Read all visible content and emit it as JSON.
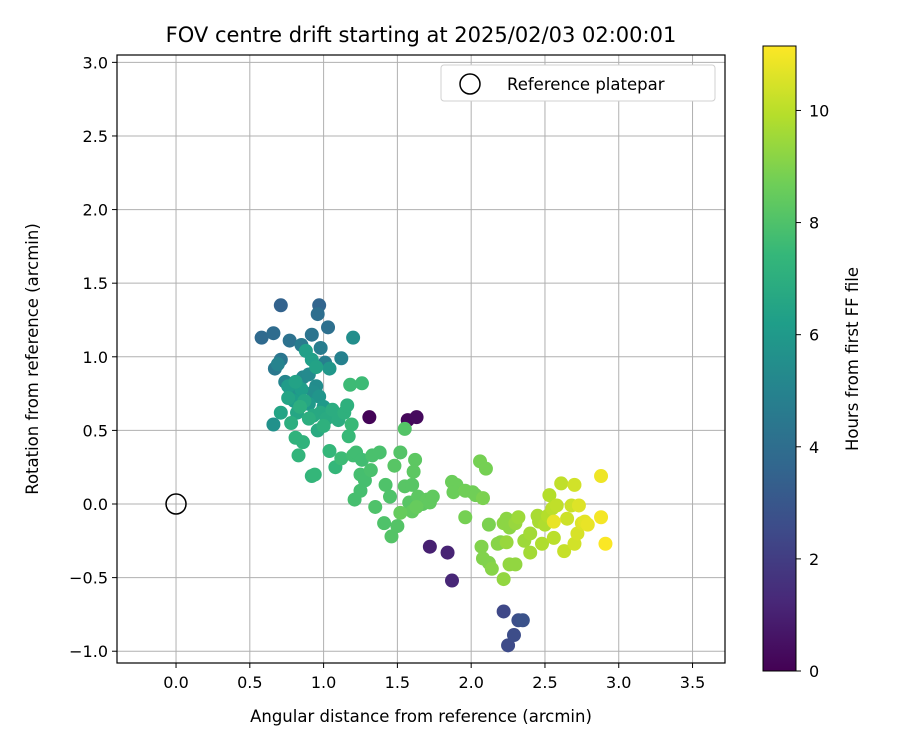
{
  "chart_data": {
    "type": "scatter",
    "title": "FOV centre drift starting at 2025/02/03 02:00:01",
    "xlabel": "Angular distance from reference (arcmin)",
    "ylabel": "Rotation from reference (arcmin)",
    "xlim": [
      -0.4,
      3.72
    ],
    "ylim": [
      -1.08,
      3.05
    ],
    "xticks": [
      "0.0",
      "0.5",
      "1.0",
      "1.5",
      "2.0",
      "2.5",
      "3.0",
      "3.5"
    ],
    "yticks": [
      "−1.0",
      "−0.5",
      "0.0",
      "0.5",
      "1.0",
      "1.5",
      "2.0",
      "2.5",
      "3.0"
    ],
    "grid": true,
    "legend": {
      "label": "Reference platepar",
      "position": "top-right"
    },
    "reference_point": {
      "x": 0.0,
      "y": 0.0
    },
    "colorbar": {
      "label": "Hours from first FF file",
      "colormap": "viridis",
      "range": [
        0,
        11.15
      ],
      "ticks": [
        "0",
        "2",
        "4",
        "6",
        "8",
        "10"
      ]
    },
    "points": [
      {
        "x": 1.31,
        "y": 0.59,
        "t": 0.1
      },
      {
        "x": 1.57,
        "y": 0.57,
        "t": 0.2
      },
      {
        "x": 1.63,
        "y": 0.59,
        "t": 0.3
      },
      {
        "x": 1.72,
        "y": -0.29,
        "t": 1.0
      },
      {
        "x": 1.84,
        "y": -0.33,
        "t": 1.1
      },
      {
        "x": 1.87,
        "y": -0.52,
        "t": 1.2
      },
      {
        "x": 2.22,
        "y": -0.73,
        "t": 2.4
      },
      {
        "x": 2.25,
        "y": -0.96,
        "t": 2.5
      },
      {
        "x": 2.29,
        "y": -0.89,
        "t": 2.6
      },
      {
        "x": 2.32,
        "y": -0.79,
        "t": 2.7
      },
      {
        "x": 2.35,
        "y": -0.79,
        "t": 2.8
      },
      {
        "x": 0.71,
        "y": 1.35,
        "t": 3.5
      },
      {
        "x": 0.97,
        "y": 1.35,
        "t": 3.6
      },
      {
        "x": 0.58,
        "y": 1.13,
        "t": 3.8
      },
      {
        "x": 0.66,
        "y": 1.16,
        "t": 3.9
      },
      {
        "x": 0.96,
        "y": 1.29,
        "t": 4.0
      },
      {
        "x": 1.03,
        "y": 1.2,
        "t": 4.1
      },
      {
        "x": 0.77,
        "y": 1.11,
        "t": 4.2
      },
      {
        "x": 0.92,
        "y": 1.15,
        "t": 4.3
      },
      {
        "x": 0.71,
        "y": 0.98,
        "t": 4.4
      },
      {
        "x": 0.67,
        "y": 0.92,
        "t": 4.5
      },
      {
        "x": 0.85,
        "y": 1.08,
        "t": 4.6
      },
      {
        "x": 0.98,
        "y": 1.06,
        "t": 4.7
      },
      {
        "x": 1.01,
        "y": 0.96,
        "t": 4.8
      },
      {
        "x": 1.12,
        "y": 0.99,
        "t": 4.9
      },
      {
        "x": 0.69,
        "y": 0.95,
        "t": 5.0
      },
      {
        "x": 0.74,
        "y": 0.83,
        "t": 5.1
      },
      {
        "x": 0.86,
        "y": 0.86,
        "t": 5.2
      },
      {
        "x": 0.9,
        "y": 0.88,
        "t": 5.3
      },
      {
        "x": 0.95,
        "y": 0.8,
        "t": 5.4
      },
      {
        "x": 1.2,
        "y": 1.13,
        "t": 5.5
      },
      {
        "x": 0.93,
        "y": 0.76,
        "t": 5.5
      },
      {
        "x": 0.66,
        "y": 0.54,
        "t": 5.6
      },
      {
        "x": 0.78,
        "y": 0.76,
        "t": 5.7
      },
      {
        "x": 0.83,
        "y": 0.72,
        "t": 5.8
      },
      {
        "x": 0.97,
        "y": 0.73,
        "t": 5.8
      },
      {
        "x": 1.04,
        "y": 0.92,
        "t": 5.9
      },
      {
        "x": 0.9,
        "y": 0.68,
        "t": 6.0
      },
      {
        "x": 1.0,
        "y": 0.66,
        "t": 6.0
      },
      {
        "x": 0.76,
        "y": 0.8,
        "t": 6.1
      },
      {
        "x": 0.8,
        "y": 0.7,
        "t": 6.2
      },
      {
        "x": 0.85,
        "y": 0.78,
        "t": 6.2
      },
      {
        "x": 0.88,
        "y": 1.04,
        "t": 6.3
      },
      {
        "x": 0.92,
        "y": 0.98,
        "t": 6.3
      },
      {
        "x": 0.95,
        "y": 0.93,
        "t": 6.4
      },
      {
        "x": 0.81,
        "y": 0.83,
        "t": 6.4
      },
      {
        "x": 0.71,
        "y": 0.62,
        "t": 6.5
      },
      {
        "x": 0.76,
        "y": 0.72,
        "t": 6.5
      },
      {
        "x": 0.82,
        "y": 0.62,
        "t": 6.6
      },
      {
        "x": 0.87,
        "y": 0.7,
        "t": 6.6
      },
      {
        "x": 0.93,
        "y": 0.6,
        "t": 6.7
      },
      {
        "x": 0.98,
        "y": 0.62,
        "t": 6.7
      },
      {
        "x": 1.02,
        "y": 0.58,
        "t": 6.8
      },
      {
        "x": 0.96,
        "y": 0.5,
        "t": 6.8
      },
      {
        "x": 1.06,
        "y": 0.64,
        "t": 6.9
      },
      {
        "x": 1.1,
        "y": 0.57,
        "t": 6.9
      },
      {
        "x": 0.78,
        "y": 0.55,
        "t": 7.0
      },
      {
        "x": 0.84,
        "y": 0.66,
        "t": 7.0
      },
      {
        "x": 0.9,
        "y": 0.58,
        "t": 7.0
      },
      {
        "x": 1.0,
        "y": 0.53,
        "t": 7.1
      },
      {
        "x": 1.14,
        "y": 0.62,
        "t": 7.1
      },
      {
        "x": 1.16,
        "y": 0.67,
        "t": 7.1
      },
      {
        "x": 0.81,
        "y": 0.45,
        "t": 7.2
      },
      {
        "x": 0.86,
        "y": 0.42,
        "t": 7.2
      },
      {
        "x": 0.83,
        "y": 0.33,
        "t": 7.3
      },
      {
        "x": 0.92,
        "y": 0.19,
        "t": 7.3
      },
      {
        "x": 0.94,
        "y": 0.2,
        "t": 7.4
      },
      {
        "x": 1.04,
        "y": 0.36,
        "t": 7.4
      },
      {
        "x": 1.08,
        "y": 0.25,
        "t": 7.4
      },
      {
        "x": 1.17,
        "y": 0.46,
        "t": 7.5
      },
      {
        "x": 1.19,
        "y": 0.54,
        "t": 7.5
      },
      {
        "x": 1.18,
        "y": 0.81,
        "t": 7.6
      },
      {
        "x": 1.26,
        "y": 0.82,
        "t": 7.6
      },
      {
        "x": 1.12,
        "y": 0.31,
        "t": 7.6
      },
      {
        "x": 1.2,
        "y": 0.33,
        "t": 7.7
      },
      {
        "x": 1.22,
        "y": 0.35,
        "t": 7.7
      },
      {
        "x": 1.26,
        "y": 0.3,
        "t": 7.7
      },
      {
        "x": 1.25,
        "y": 0.2,
        "t": 7.8
      },
      {
        "x": 1.28,
        "y": 0.16,
        "t": 7.8
      },
      {
        "x": 1.25,
        "y": 0.09,
        "t": 7.8
      },
      {
        "x": 1.21,
        "y": 0.03,
        "t": 7.8
      },
      {
        "x": 1.33,
        "y": 0.33,
        "t": 7.9
      },
      {
        "x": 1.38,
        "y": 0.35,
        "t": 7.9
      },
      {
        "x": 1.32,
        "y": 0.23,
        "t": 7.9
      },
      {
        "x": 1.35,
        "y": -0.02,
        "t": 8.0
      },
      {
        "x": 1.42,
        "y": 0.13,
        "t": 8.0
      },
      {
        "x": 1.45,
        "y": 0.05,
        "t": 8.0
      },
      {
        "x": 1.41,
        "y": -0.13,
        "t": 8.0
      },
      {
        "x": 1.46,
        "y": -0.22,
        "t": 8.1
      },
      {
        "x": 1.5,
        "y": -0.15,
        "t": 8.1
      },
      {
        "x": 1.55,
        "y": 0.51,
        "t": 8.1
      },
      {
        "x": 1.52,
        "y": 0.35,
        "t": 8.1
      },
      {
        "x": 1.48,
        "y": 0.26,
        "t": 8.2
      },
      {
        "x": 1.55,
        "y": 0.12,
        "t": 8.2
      },
      {
        "x": 1.58,
        "y": 0.01,
        "t": 8.2
      },
      {
        "x": 1.6,
        "y": 0.13,
        "t": 8.2
      },
      {
        "x": 1.62,
        "y": 0.3,
        "t": 8.3
      },
      {
        "x": 1.61,
        "y": 0.22,
        "t": 8.3
      },
      {
        "x": 1.64,
        "y": 0.05,
        "t": 8.3
      },
      {
        "x": 1.67,
        "y": 0.0,
        "t": 8.3
      },
      {
        "x": 1.6,
        "y": -0.05,
        "t": 8.4
      },
      {
        "x": 1.7,
        "y": 0.03,
        "t": 8.4
      },
      {
        "x": 1.72,
        "y": 0.01,
        "t": 8.4
      },
      {
        "x": 1.74,
        "y": 0.05,
        "t": 8.4
      },
      {
        "x": 1.52,
        "y": -0.06,
        "t": 8.5
      },
      {
        "x": 1.63,
        "y": -0.02,
        "t": 8.5
      },
      {
        "x": 1.87,
        "y": 0.15,
        "t": 8.6
      },
      {
        "x": 1.9,
        "y": 0.13,
        "t": 8.6
      },
      {
        "x": 1.88,
        "y": 0.08,
        "t": 8.6
      },
      {
        "x": 1.96,
        "y": 0.09,
        "t": 8.7
      },
      {
        "x": 2.01,
        "y": 0.08,
        "t": 8.7
      },
      {
        "x": 2.03,
        "y": 0.06,
        "t": 8.7
      },
      {
        "x": 1.96,
        "y": -0.09,
        "t": 8.8
      },
      {
        "x": 2.06,
        "y": 0.29,
        "t": 8.8
      },
      {
        "x": 2.1,
        "y": 0.24,
        "t": 8.8
      },
      {
        "x": 2.08,
        "y": 0.04,
        "t": 8.9
      },
      {
        "x": 2.12,
        "y": -0.14,
        "t": 8.9
      },
      {
        "x": 2.07,
        "y": -0.29,
        "t": 9.0
      },
      {
        "x": 2.08,
        "y": -0.37,
        "t": 9.0
      },
      {
        "x": 2.12,
        "y": -0.4,
        "t": 9.0
      },
      {
        "x": 2.14,
        "y": -0.44,
        "t": 9.1
      },
      {
        "x": 2.18,
        "y": -0.27,
        "t": 9.1
      },
      {
        "x": 2.2,
        "y": -0.26,
        "t": 9.1
      },
      {
        "x": 2.22,
        "y": -0.13,
        "t": 9.2
      },
      {
        "x": 2.24,
        "y": -0.1,
        "t": 9.2
      },
      {
        "x": 2.26,
        "y": -0.16,
        "t": 9.2
      },
      {
        "x": 2.22,
        "y": -0.51,
        "t": 9.3
      },
      {
        "x": 2.26,
        "y": -0.41,
        "t": 9.3
      },
      {
        "x": 2.3,
        "y": -0.41,
        "t": 9.3
      },
      {
        "x": 2.24,
        "y": -0.26,
        "t": 9.4
      },
      {
        "x": 2.3,
        "y": -0.13,
        "t": 9.4
      },
      {
        "x": 2.32,
        "y": -0.09,
        "t": 9.5
      },
      {
        "x": 2.36,
        "y": -0.25,
        "t": 9.5
      },
      {
        "x": 2.4,
        "y": -0.2,
        "t": 9.6
      },
      {
        "x": 2.4,
        "y": -0.33,
        "t": 9.6
      },
      {
        "x": 2.45,
        "y": -0.08,
        "t": 9.7
      },
      {
        "x": 2.46,
        "y": -0.12,
        "t": 9.7
      },
      {
        "x": 2.48,
        "y": -0.27,
        "t": 9.8
      },
      {
        "x": 2.5,
        "y": -0.14,
        "t": 9.8
      },
      {
        "x": 2.52,
        "y": -0.08,
        "t": 9.9
      },
      {
        "x": 2.53,
        "y": 0.06,
        "t": 9.9
      },
      {
        "x": 2.55,
        "y": -0.03,
        "t": 10.0
      },
      {
        "x": 2.56,
        "y": -0.23,
        "t": 10.0
      },
      {
        "x": 2.58,
        "y": -0.01,
        "t": 10.1
      },
      {
        "x": 2.61,
        "y": 0.14,
        "t": 10.1
      },
      {
        "x": 2.63,
        "y": -0.32,
        "t": 10.2
      },
      {
        "x": 2.65,
        "y": -0.1,
        "t": 10.3
      },
      {
        "x": 2.68,
        "y": -0.01,
        "t": 10.3
      },
      {
        "x": 2.7,
        "y": 0.13,
        "t": 10.4
      },
      {
        "x": 2.7,
        "y": -0.27,
        "t": 10.4
      },
      {
        "x": 2.72,
        "y": -0.2,
        "t": 10.5
      },
      {
        "x": 2.75,
        "y": -0.13,
        "t": 10.6
      },
      {
        "x": 2.73,
        "y": -0.01,
        "t": 10.6
      },
      {
        "x": 2.77,
        "y": -0.12,
        "t": 10.7
      },
      {
        "x": 2.79,
        "y": -0.14,
        "t": 10.8
      },
      {
        "x": 2.56,
        "y": -0.12,
        "t": 10.8
      },
      {
        "x": 2.88,
        "y": 0.19,
        "t": 10.9
      },
      {
        "x": 2.88,
        "y": -0.09,
        "t": 11.0
      },
      {
        "x": 2.91,
        "y": -0.27,
        "t": 11.1
      }
    ]
  }
}
